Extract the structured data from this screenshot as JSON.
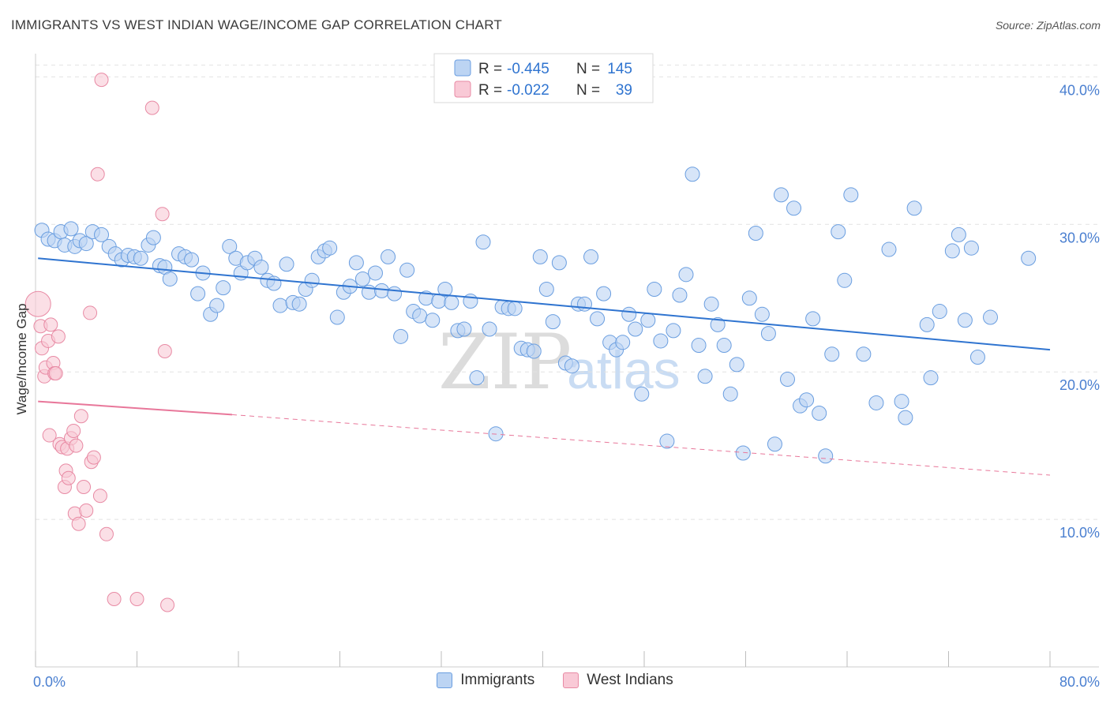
{
  "title": "IMMIGRANTS VS WEST INDIAN WAGE/INCOME GAP CORRELATION CHART",
  "source": "Source: ZipAtlas.com",
  "watermark": {
    "zip": "ZIP",
    "atlas": "atlas"
  },
  "colors": {
    "blue_fill": "#bcd4f3",
    "blue_stroke": "#6a9ee0",
    "blue_line": "#2f74d0",
    "pink_fill": "#f9c9d6",
    "pink_stroke": "#e88aa4",
    "pink_line": "#e8779a",
    "axis_text": "#4a7fd0",
    "legend_value": "#2f74d0"
  },
  "legend_box": {
    "rows": [
      {
        "r_label": "R =",
        "r_value": "-0.445",
        "n_label": "N =",
        "n_value": "145",
        "series": "blue"
      },
      {
        "r_label": "R =",
        "r_value": "-0.022",
        "n_label": "N =",
        "n_value": "39",
        "series": "pink"
      }
    ]
  },
  "bottom_legend": {
    "immigrants": "Immigrants",
    "west_indians": "West Indians"
  },
  "chart_data": {
    "type": "scatter",
    "title": "IMMIGRANTS VS WEST INDIAN WAGE/INCOME GAP CORRELATION CHART",
    "xlabel": "",
    "ylabel": "Wage/Income Gap",
    "xlim": [
      0,
      80
    ],
    "ylim": [
      0,
      42
    ],
    "x_tick_labels": [
      {
        "value": 0,
        "label": "0.0%"
      },
      {
        "value": 80,
        "label": "80.0%"
      }
    ],
    "y_tick_labels": [
      {
        "value": 10,
        "label": "10.0%"
      },
      {
        "value": 20,
        "label": "20.0%"
      },
      {
        "value": 30,
        "label": "30.0%"
      },
      {
        "value": 40,
        "label": "40.0%"
      }
    ],
    "x_minor_ticks": [
      0,
      8,
      16,
      24,
      32,
      40,
      48,
      56,
      64,
      72,
      80
    ],
    "grid": true,
    "series": [
      {
        "name": "Immigrants",
        "color": "blue",
        "R": -0.445,
        "N": 145,
        "trend": {
          "x0": 0.2,
          "y0": 27.7,
          "x1": 80,
          "y1": 21.5,
          "style": "solid"
        },
        "points": [
          [
            0.5,
            29.6
          ],
          [
            1.0,
            29.0
          ],
          [
            1.5,
            28.9
          ],
          [
            2.0,
            29.5
          ],
          [
            2.3,
            28.6
          ],
          [
            2.8,
            29.7
          ],
          [
            3.1,
            28.5
          ],
          [
            3.5,
            28.9
          ],
          [
            4.0,
            28.7
          ],
          [
            4.5,
            29.5
          ],
          [
            5.2,
            29.3
          ],
          [
            5.8,
            28.5
          ],
          [
            6.3,
            28.0
          ],
          [
            6.8,
            27.6
          ],
          [
            7.3,
            27.9
          ],
          [
            7.8,
            27.8
          ],
          [
            8.3,
            27.7
          ],
          [
            8.9,
            28.6
          ],
          [
            9.3,
            29.1
          ],
          [
            9.8,
            27.2
          ],
          [
            10.2,
            27.1
          ],
          [
            10.6,
            26.3
          ],
          [
            11.3,
            28.0
          ],
          [
            11.8,
            27.8
          ],
          [
            12.3,
            27.6
          ],
          [
            12.8,
            25.3
          ],
          [
            13.2,
            26.7
          ],
          [
            13.8,
            23.9
          ],
          [
            14.3,
            24.5
          ],
          [
            14.8,
            25.7
          ],
          [
            15.3,
            28.5
          ],
          [
            15.8,
            27.7
          ],
          [
            16.2,
            26.7
          ],
          [
            16.7,
            27.4
          ],
          [
            17.3,
            27.7
          ],
          [
            17.8,
            27.1
          ],
          [
            18.3,
            26.2
          ],
          [
            18.8,
            26.0
          ],
          [
            19.3,
            24.5
          ],
          [
            19.8,
            27.3
          ],
          [
            20.3,
            24.7
          ],
          [
            20.8,
            24.6
          ],
          [
            21.3,
            25.6
          ],
          [
            21.8,
            26.2
          ],
          [
            22.3,
            27.8
          ],
          [
            22.8,
            28.2
          ],
          [
            23.2,
            28.4
          ],
          [
            23.8,
            23.7
          ],
          [
            24.3,
            25.4
          ],
          [
            24.8,
            25.8
          ],
          [
            25.3,
            27.4
          ],
          [
            25.8,
            26.3
          ],
          [
            26.3,
            25.4
          ],
          [
            26.8,
            26.7
          ],
          [
            27.3,
            25.5
          ],
          [
            27.8,
            27.8
          ],
          [
            28.3,
            25.3
          ],
          [
            28.8,
            22.4
          ],
          [
            29.3,
            26.9
          ],
          [
            29.8,
            24.1
          ],
          [
            30.3,
            23.8
          ],
          [
            30.8,
            25.0
          ],
          [
            31.3,
            23.5
          ],
          [
            31.8,
            24.8
          ],
          [
            32.3,
            25.6
          ],
          [
            32.8,
            24.7
          ],
          [
            33.3,
            22.8
          ],
          [
            33.8,
            22.9
          ],
          [
            34.3,
            24.8
          ],
          [
            34.8,
            19.6
          ],
          [
            35.3,
            28.8
          ],
          [
            35.8,
            22.9
          ],
          [
            36.3,
            15.8
          ],
          [
            36.8,
            24.4
          ],
          [
            37.3,
            24.3
          ],
          [
            37.8,
            24.3
          ],
          [
            38.3,
            21.6
          ],
          [
            38.8,
            21.5
          ],
          [
            39.3,
            21.4
          ],
          [
            39.8,
            27.8
          ],
          [
            40.3,
            25.6
          ],
          [
            40.8,
            23.4
          ],
          [
            41.3,
            27.4
          ],
          [
            41.8,
            20.6
          ],
          [
            42.3,
            20.4
          ],
          [
            42.8,
            24.6
          ],
          [
            43.3,
            24.6
          ],
          [
            43.8,
            27.8
          ],
          [
            44.3,
            23.6
          ],
          [
            44.8,
            25.3
          ],
          [
            45.3,
            22.0
          ],
          [
            45.8,
            21.5
          ],
          [
            46.3,
            22.0
          ],
          [
            46.8,
            23.9
          ],
          [
            47.3,
            22.9
          ],
          [
            47.8,
            18.5
          ],
          [
            48.3,
            23.5
          ],
          [
            48.8,
            25.6
          ],
          [
            49.3,
            22.1
          ],
          [
            49.8,
            15.3
          ],
          [
            50.3,
            22.8
          ],
          [
            50.8,
            25.2
          ],
          [
            51.3,
            26.6
          ],
          [
            51.8,
            33.4
          ],
          [
            52.3,
            21.8
          ],
          [
            52.8,
            19.7
          ],
          [
            53.3,
            24.6
          ],
          [
            53.8,
            23.2
          ],
          [
            54.3,
            21.8
          ],
          [
            54.8,
            18.5
          ],
          [
            55.3,
            20.5
          ],
          [
            55.8,
            14.5
          ],
          [
            56.3,
            25.0
          ],
          [
            56.8,
            29.4
          ],
          [
            57.3,
            23.9
          ],
          [
            57.8,
            22.6
          ],
          [
            58.3,
            15.1
          ],
          [
            58.8,
            32.0
          ],
          [
            59.3,
            19.5
          ],
          [
            59.8,
            31.1
          ],
          [
            60.3,
            17.7
          ],
          [
            60.8,
            18.1
          ],
          [
            61.3,
            23.6
          ],
          [
            61.8,
            17.2
          ],
          [
            62.3,
            14.3
          ],
          [
            62.8,
            21.2
          ],
          [
            63.3,
            29.5
          ],
          [
            63.8,
            26.2
          ],
          [
            64.3,
            32.0
          ],
          [
            65.3,
            21.2
          ],
          [
            66.3,
            17.9
          ],
          [
            67.3,
            28.3
          ],
          [
            68.3,
            18.0
          ],
          [
            68.6,
            16.9
          ],
          [
            69.3,
            31.1
          ],
          [
            70.3,
            23.2
          ],
          [
            70.6,
            19.6
          ],
          [
            71.3,
            24.1
          ],
          [
            72.3,
            28.2
          ],
          [
            72.8,
            29.3
          ],
          [
            73.3,
            23.5
          ],
          [
            73.8,
            28.4
          ],
          [
            74.3,
            21.0
          ],
          [
            75.3,
            23.7
          ],
          [
            78.3,
            27.7
          ]
        ]
      },
      {
        "name": "West Indians",
        "color": "pink",
        "R": -0.022,
        "N": 39,
        "trend": {
          "x0": 0.2,
          "y0": 18.0,
          "x1": 15.5,
          "y1": 17.1,
          "style": "solid",
          "dashed_extension_to": {
            "x": 80,
            "y": 13.0
          }
        },
        "points": [
          [
            0.2,
            24.6
          ],
          [
            0.4,
            23.1
          ],
          [
            0.5,
            21.6
          ],
          [
            0.7,
            19.7
          ],
          [
            0.8,
            20.3
          ],
          [
            1.0,
            22.1
          ],
          [
            1.1,
            15.7
          ],
          [
            1.2,
            23.2
          ],
          [
            1.4,
            20.6
          ],
          [
            1.5,
            19.9
          ],
          [
            1.6,
            19.9
          ],
          [
            1.8,
            22.4
          ],
          [
            1.9,
            15.1
          ],
          [
            2.1,
            14.9
          ],
          [
            2.3,
            12.2
          ],
          [
            2.4,
            13.3
          ],
          [
            2.5,
            14.8
          ],
          [
            2.6,
            12.8
          ],
          [
            2.8,
            15.5
          ],
          [
            3.0,
            16.0
          ],
          [
            3.1,
            10.4
          ],
          [
            3.2,
            15.0
          ],
          [
            3.4,
            9.7
          ],
          [
            3.6,
            17.0
          ],
          [
            3.8,
            12.2
          ],
          [
            4.0,
            10.6
          ],
          [
            4.3,
            24.0
          ],
          [
            4.4,
            13.9
          ],
          [
            4.6,
            14.2
          ],
          [
            4.9,
            33.4
          ],
          [
            5.1,
            11.6
          ],
          [
            5.2,
            39.8
          ],
          [
            5.6,
            9.0
          ],
          [
            6.2,
            4.6
          ],
          [
            8.0,
            4.6
          ],
          [
            9.2,
            37.9
          ],
          [
            10.0,
            30.7
          ],
          [
            10.2,
            21.4
          ],
          [
            10.4,
            4.2
          ]
        ]
      }
    ]
  }
}
